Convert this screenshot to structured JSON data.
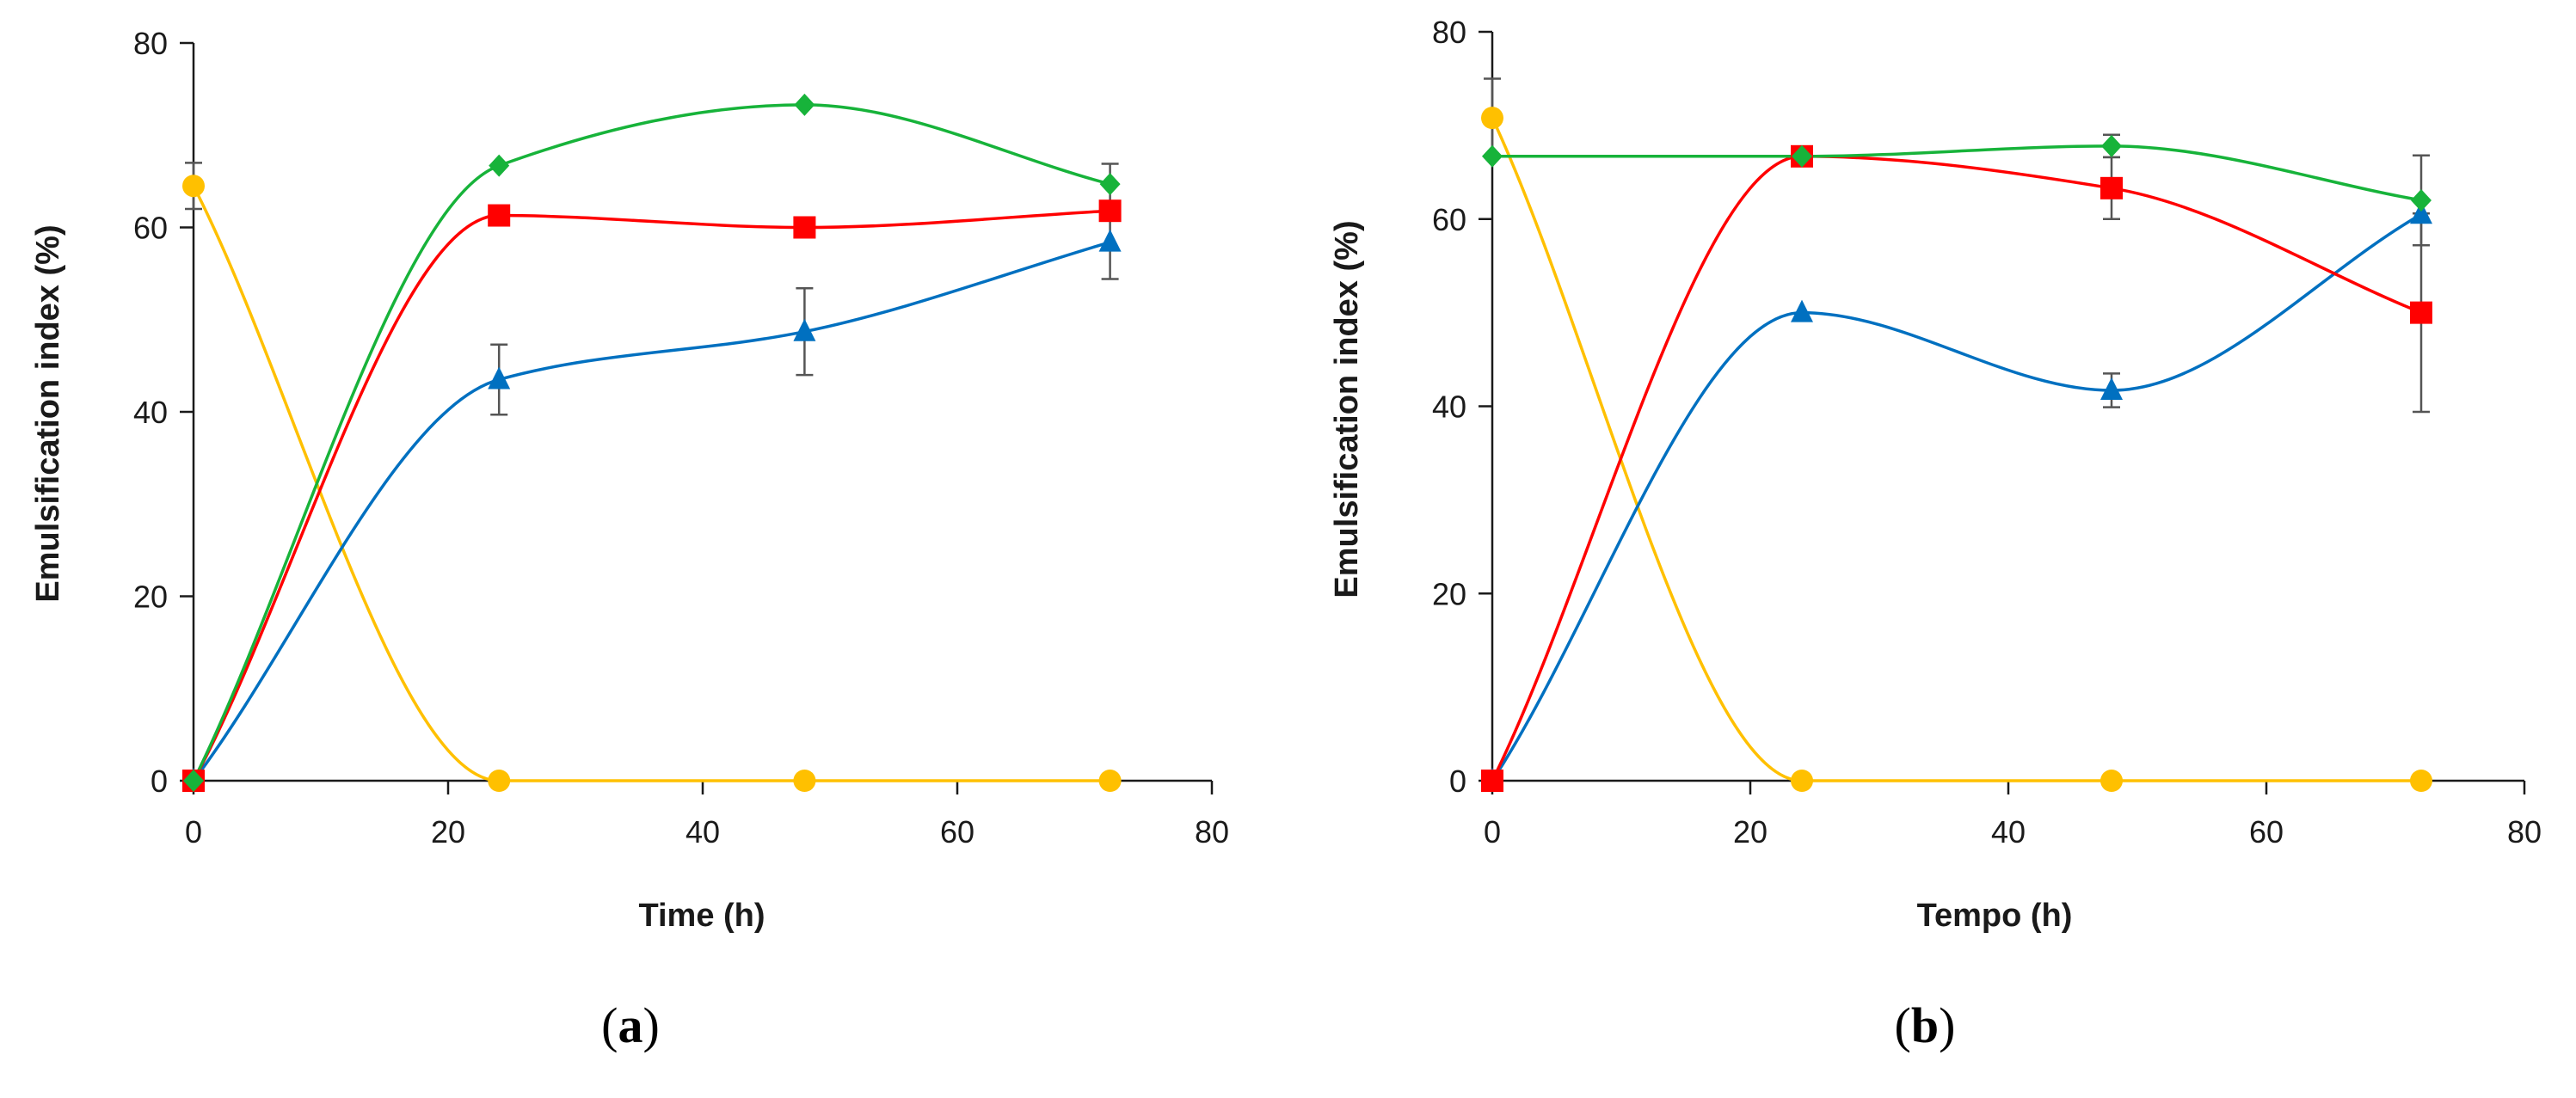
{
  "chart_data": [
    {
      "type": "line",
      "panel_label": "a",
      "xlabel": "Time (h)",
      "ylabel": "Emulsification index (%)",
      "xlim": [
        0,
        80
      ],
      "ylim": [
        0,
        80
      ],
      "xticks": [
        "0",
        "20",
        "40",
        "60",
        "80"
      ],
      "yticks": [
        "0",
        "20",
        "40",
        "60",
        "80"
      ],
      "grid": false,
      "x": [
        0,
        24,
        48,
        72
      ],
      "series": [
        {
          "name": "green-diamond",
          "color": "#17B33A",
          "marker": "diamond",
          "values": [
            0,
            66.7,
            73.3,
            64.7
          ],
          "errors": [
            0,
            0,
            0,
            2.2
          ]
        },
        {
          "name": "red-square",
          "color": "#FF0000",
          "marker": "square",
          "values": [
            0,
            61.3,
            60.0,
            61.8
          ],
          "errors": [
            0,
            0,
            0,
            0
          ]
        },
        {
          "name": "blue-triangle",
          "color": "#0070C0",
          "marker": "triangle",
          "values": [
            0,
            43.5,
            48.7,
            58.4
          ],
          "errors": [
            0,
            3.8,
            4.7,
            4.0
          ]
        },
        {
          "name": "yellow-circle",
          "color": "#FFC000",
          "marker": "circle",
          "values": [
            64.5,
            0,
            0,
            0
          ],
          "errors": [
            2.5,
            0,
            0,
            0
          ]
        }
      ]
    },
    {
      "type": "line",
      "panel_label": "b",
      "xlabel": "Tempo (h)",
      "ylabel": "Emulsification index (%)",
      "xlim": [
        0,
        80
      ],
      "ylim": [
        0,
        80
      ],
      "xticks": [
        "0",
        "20",
        "40",
        "60",
        "80"
      ],
      "yticks": [
        "0",
        "20",
        "40",
        "60",
        "80"
      ],
      "grid": false,
      "x": [
        0,
        24,
        48,
        72
      ],
      "series": [
        {
          "name": "green-diamond",
          "color": "#17B33A",
          "marker": "diamond",
          "values": [
            66.7,
            66.7,
            67.8,
            62.0
          ],
          "errors": [
            0,
            0,
            1.2,
            4.8
          ]
        },
        {
          "name": "red-square",
          "color": "#FF0000",
          "marker": "square",
          "values": [
            0,
            66.7,
            63.3,
            50.0
          ],
          "errors": [
            0,
            0,
            3.3,
            10.6
          ]
        },
        {
          "name": "blue-triangle",
          "color": "#0070C0",
          "marker": "triangle",
          "values": [
            0,
            50.0,
            41.7,
            60.5
          ],
          "errors": [
            0,
            0,
            1.8,
            0
          ]
        },
        {
          "name": "yellow-circle",
          "color": "#FFC000",
          "marker": "circle",
          "values": [
            70.8,
            0,
            0,
            0
          ],
          "errors": [
            4.2,
            0,
            0,
            0
          ]
        }
      ]
    }
  ]
}
